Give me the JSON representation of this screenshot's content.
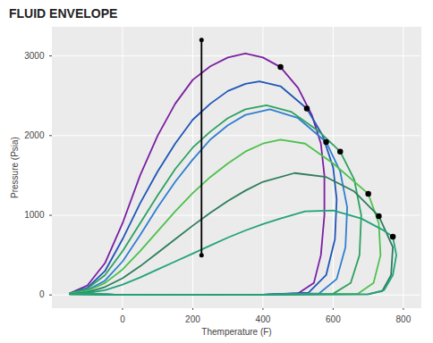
{
  "chart_data": {
    "type": "line",
    "title": "FLUID ENVELOPE",
    "x_label": "Themperature (F)",
    "y_label": "Pressure (Psia)",
    "xlim": [
      -200,
      850
    ],
    "ylim": [
      -160,
      3360
    ],
    "xticks": [
      0,
      200,
      400,
      600,
      800
    ],
    "yticks": [
      0,
      1000,
      2000,
      3000
    ],
    "grid": true,
    "series": [
      {
        "type": "line",
        "color": "#7b1fa2",
        "x": [
          -150,
          -100,
          -50,
          0,
          50,
          100,
          150,
          200,
          250,
          300,
          350,
          400,
          450,
          500,
          540,
          565,
          575,
          575,
          565,
          545,
          500,
          400,
          200,
          0,
          -150
        ],
        "values": [
          20,
          120,
          400,
          900,
          1500,
          2000,
          2400,
          2700,
          2870,
          2980,
          3030,
          2980,
          2860,
          2600,
          2250,
          1900,
          1500,
          1000,
          500,
          150,
          20,
          5,
          2,
          2,
          20
        ]
      },
      {
        "type": "line",
        "color": "#1f56b8",
        "x": [
          -150,
          -100,
          -50,
          0,
          50,
          100,
          150,
          200,
          250,
          300,
          350,
          390,
          450,
          525,
          570,
          600,
          610,
          605,
          580,
          530,
          400,
          0,
          -150
        ],
        "values": [
          20,
          90,
          300,
          700,
          1150,
          1550,
          1900,
          2200,
          2400,
          2560,
          2650,
          2680,
          2620,
          2340,
          2000,
          1600,
          1200,
          700,
          250,
          30,
          5,
          2,
          20
        ]
      },
      {
        "type": "line",
        "color": "#2f7fd0",
        "x": [
          -150,
          -100,
          -50,
          0,
          50,
          100,
          150,
          200,
          250,
          300,
          350,
          420,
          500,
          580,
          620,
          640,
          635,
          610,
          560,
          400,
          0,
          -150
        ],
        "values": [
          20,
          60,
          180,
          420,
          750,
          1100,
          1420,
          1700,
          1950,
          2130,
          2260,
          2330,
          2220,
          1920,
          1550,
          1100,
          600,
          200,
          20,
          5,
          2,
          20
        ]
      },
      {
        "type": "line",
        "color": "#2ca25f",
        "x": [
          -150,
          -100,
          -50,
          0,
          50,
          100,
          150,
          200,
          250,
          300,
          350,
          410,
          480,
          560,
          620,
          660,
          680,
          675,
          650,
          600,
          400,
          0,
          -150
        ],
        "values": [
          20,
          80,
          250,
          550,
          900,
          1250,
          1580,
          1850,
          2050,
          2220,
          2330,
          2380,
          2300,
          2050,
          1800,
          1450,
          1000,
          500,
          150,
          15,
          5,
          2,
          20
        ]
      },
      {
        "type": "line",
        "color": "#4cc24c",
        "x": [
          -150,
          -100,
          -50,
          0,
          50,
          100,
          150,
          200,
          250,
          300,
          350,
          400,
          450,
          520,
          600,
          700,
          730,
          735,
          715,
          670,
          400,
          0,
          -150
        ],
        "values": [
          15,
          50,
          150,
          320,
          550,
          800,
          1050,
          1280,
          1480,
          1650,
          1800,
          1900,
          1950,
          1900,
          1650,
          1270,
          900,
          500,
          150,
          15,
          5,
          2,
          15
        ]
      },
      {
        "type": "line",
        "color": "#2e7d5b",
        "x": [
          -150,
          -100,
          -50,
          0,
          50,
          100,
          150,
          200,
          250,
          300,
          350,
          400,
          490,
          580,
          660,
          730,
          770,
          765,
          740,
          700,
          400,
          0,
          -150
        ],
        "values": [
          10,
          35,
          100,
          210,
          360,
          530,
          700,
          870,
          1030,
          1180,
          1310,
          1420,
          1530,
          1480,
          1300,
          990,
          600,
          250,
          50,
          10,
          3,
          2,
          10
        ]
      },
      {
        "type": "line",
        "color": "#21a37a",
        "x": [
          -150,
          -100,
          -50,
          0,
          50,
          100,
          150,
          200,
          250,
          300,
          350,
          400,
          450,
          520,
          600,
          680,
          740,
          770,
          780,
          770,
          745,
          700,
          400,
          0,
          -150
        ],
        "values": [
          8,
          25,
          60,
          130,
          220,
          320,
          420,
          520,
          620,
          720,
          810,
          890,
          960,
          1050,
          1060,
          960,
          820,
          730,
          500,
          250,
          60,
          10,
          3,
          2,
          8
        ]
      },
      {
        "type": "line",
        "color": "#000000",
        "marker": "circle",
        "x": [
          225,
          225
        ],
        "values": [
          500,
          3200
        ]
      },
      {
        "type": "scatter",
        "color": "#000000",
        "marker": "circle",
        "x": [
          450,
          525,
          580,
          620,
          700,
          730,
          770
        ],
        "values": [
          2860,
          2340,
          1920,
          1800,
          1270,
          990,
          730
        ]
      }
    ]
  }
}
